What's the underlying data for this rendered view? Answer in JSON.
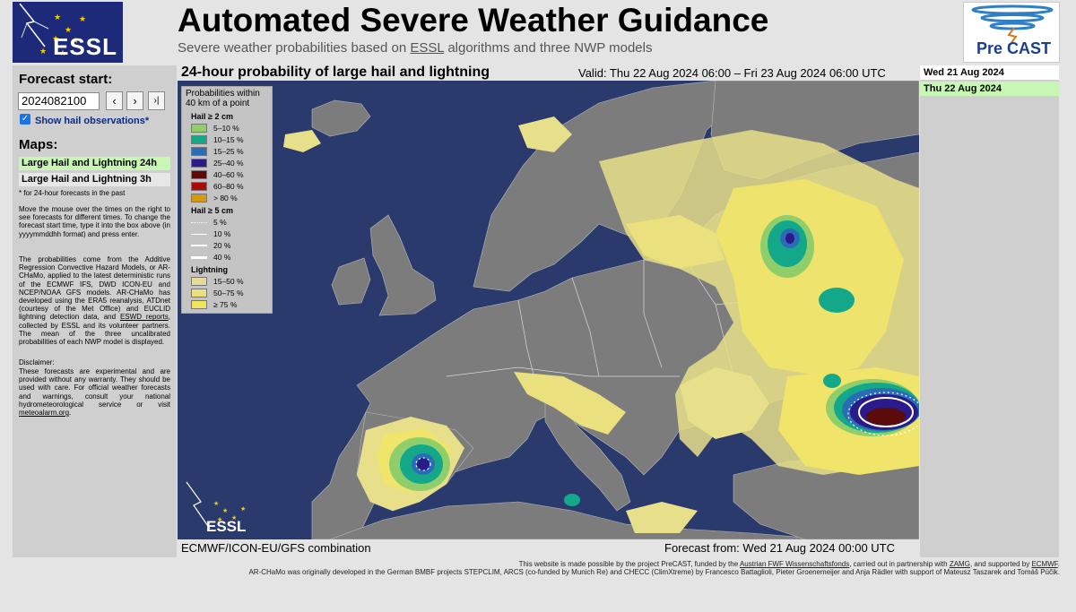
{
  "header": {
    "title": "Automated Severe Weather Guidance",
    "subtitle_pre": "Severe weather probabilities based on ",
    "subtitle_link": "ESSL",
    "subtitle_post": " algorithms and three NWP models",
    "left_logo_text": "ESSL",
    "right_logo_text_a": "Pre",
    "right_logo_text_b": "CAST"
  },
  "sidebar": {
    "forecast_start_label": "Forecast start:",
    "forecast_start_value": "2024082100",
    "nav_prev": "‹",
    "nav_next": "›",
    "nav_last": "›|",
    "hail_checkbox_label": "Show hail observations*",
    "maps_label": "Maps:",
    "map_items": [
      "Large Hail and Lightning 24h",
      "Large Hail and Lightning 3h"
    ],
    "note": "* for 24-hour forecasts in the past",
    "para1": "Move the mouse over the times on the right to see forecasts for different times. To change the forecast start time, type it into the box above (in yyyymmddhh format) and press enter.",
    "para2_a": "The probabilities come from the Additive Regression Convective Hazard Models, or AR-CHaMo, applied to the latest deterministic runs of the ECMWF IFS, DWD ICON-EU and NCEP/NOAA GFS models. AR-CHaMo has developed using the ERA5 reanalysis, ATDnet (courtesy of the Met Office) and EUCLID lightning detection data, and ",
    "para2_link": "ESWD reports",
    "para2_b": ", collected by ESSL and its volunteer partners. The mean of the three uncalibrated probabilities of each NWP model is displayed.",
    "disclaimer_title": "Disclaimer:",
    "disclaimer_a": "These forecasts are experimental and are provided without any warranty. They should be used with care. For official weather forecasts and warnings, consult your national hydrometeorological service or visit ",
    "disclaimer_link": "meteoalarm.org",
    "disclaimer_b": "."
  },
  "map": {
    "title": "24-hour probability of large hail and lightning",
    "valid": "Valid: Thu 22 Aug 2024 06:00 – Fri 23 Aug 2024 06:00 UTC",
    "model_combination": "ECMWF/ICON-EU/GFS combination",
    "forecast_from": "Forecast from: Wed 21 Aug 2024 00:00 UTC",
    "logo_text": "ESSL",
    "colors": {
      "sea": "#2a3a6c",
      "land": "#7c7c7c",
      "light_yellow": "#e8df8a",
      "yellow": "#f0e46a",
      "green": "#2fa67c",
      "teal": "#159e95",
      "blue": "#1f4fb0",
      "navy": "#1b2a96",
      "darkred": "#5a0b0b"
    }
  },
  "legend": {
    "title": "Probabilities within 40 km of a point",
    "hail2_label": "Hail ≥ 2 cm",
    "hail2": [
      {
        "label": "5–10 %",
        "color": "#8fce6a"
      },
      {
        "label": "10–15 %",
        "color": "#14a88a"
      },
      {
        "label": "15–25 %",
        "color": "#2a6db5"
      },
      {
        "label": "25–40 %",
        "color": "#2a1a8a"
      },
      {
        "label": "40–60 %",
        "color": "#5c0b0b"
      },
      {
        "label": "60–80 %",
        "color": "#a80c0c"
      },
      {
        "label": "> 80 %",
        "color": "#d49a12"
      }
    ],
    "hail5_label": "Hail ≥ 5 cm",
    "hail5": [
      "5 %",
      "10 %",
      "20 %",
      "40 %"
    ],
    "lightning_label": "Lightning",
    "lightning": [
      {
        "label": "15–50 %",
        "color": "#e4db9a"
      },
      {
        "label": "50–75 %",
        "color": "#ebe07e"
      },
      {
        "label": "≥ 75 %",
        "color": "#f2e35e"
      }
    ]
  },
  "times": {
    "items": [
      "Wed 21 Aug 2024",
      "Thu 22 Aug 2024"
    ]
  },
  "footer": {
    "line1_a": "This website is made possible by the project PreCAST, funded by the ",
    "line1_link1": "Austrian FWF Wissenschaftsfonds",
    "line1_b": ", carried out in partnership with ",
    "line1_link2": "ZAMG",
    "line1_c": ", and supported by ",
    "line1_link3": "ECMWF",
    "line1_d": ".",
    "line2": "AR-CHaMo was originally developed in the German BMBF projects STEPCLIM, ARCS (co-funded by Munich Re) and CHECC (ClimXtreme) by Francesco Battaglioli, Pieter Groenemeijer and Anja Rädler with support of Mateusz Taszarek and Tomáš Púčik."
  }
}
